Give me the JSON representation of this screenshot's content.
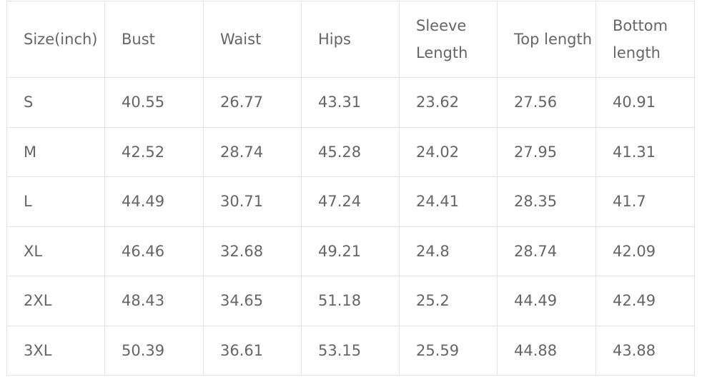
{
  "table": {
    "headers": [
      "Size(inch)",
      "Bust",
      "Waist",
      "Hips",
      "Sleeve Length",
      "Top length",
      "Bottom length"
    ],
    "rows": [
      [
        "S",
        "40.55",
        "26.77",
        "43.31",
        "23.62",
        "27.56",
        "40.91"
      ],
      [
        "M",
        "42.52",
        "28.74",
        "45.28",
        "24.02",
        "27.95",
        "41.31"
      ],
      [
        "L",
        "44.49",
        "30.71",
        "47.24",
        "24.41",
        "28.35",
        "41.7"
      ],
      [
        "XL",
        "46.46",
        "32.68",
        "49.21",
        "24.8",
        "28.74",
        "42.09"
      ],
      [
        "2XL",
        "48.43",
        "34.65",
        "51.18",
        "25.2",
        "44.49",
        "42.49"
      ],
      [
        "3XL",
        "50.39",
        "36.61",
        "53.15",
        "25.59",
        "44.88",
        "43.88"
      ]
    ]
  }
}
